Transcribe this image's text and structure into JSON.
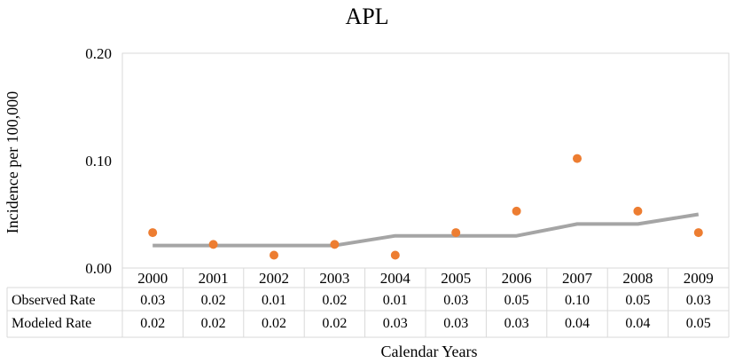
{
  "chart_data": {
    "type": "line",
    "title": "APL",
    "xlabel": "Calendar Years",
    "ylabel": "Incidence per 100,000",
    "ylim": [
      0,
      0.2
    ],
    "yticks": [
      "0.00",
      "0.10",
      "0.20"
    ],
    "categories": [
      "2000",
      "2001",
      "2002",
      "2003",
      "2004",
      "2005",
      "2006",
      "2007",
      "2008",
      "2009"
    ],
    "grid": "none",
    "series": [
      {
        "name": "Observed Rate",
        "style": "scatter",
        "color": "#ED7D31",
        "values": [
          0.033,
          0.022,
          0.012,
          0.022,
          0.012,
          0.033,
          0.053,
          0.102,
          0.053,
          0.033
        ],
        "table_labels": [
          "0.03",
          "0.02",
          "0.01",
          "0.02",
          "0.01",
          "0.03",
          "0.05",
          "0.10",
          "0.05",
          "0.03"
        ]
      },
      {
        "name": "Modeled Rate",
        "style": "line",
        "color": "#A5A5A5",
        "values": [
          0.021,
          0.021,
          0.021,
          0.021,
          0.03,
          0.03,
          0.03,
          0.041,
          0.041,
          0.05
        ],
        "table_labels": [
          "0.02",
          "0.02",
          "0.02",
          "0.02",
          "0.03",
          "0.03",
          "0.03",
          "0.04",
          "0.04",
          "0.05"
        ]
      }
    ]
  }
}
